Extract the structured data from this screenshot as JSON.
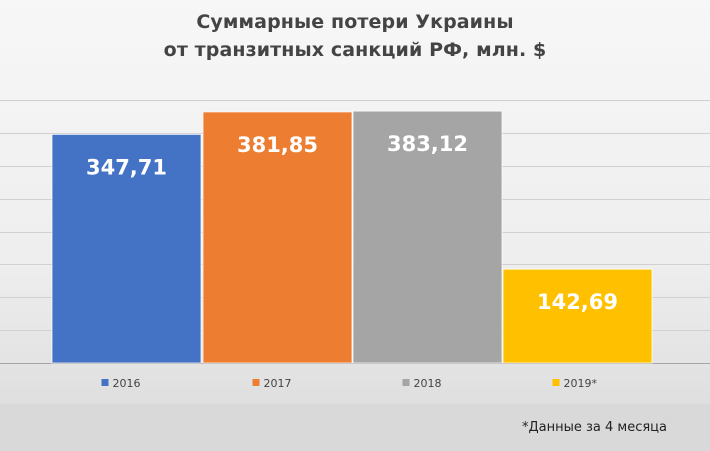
{
  "chart_title": {
    "line1": "Суммарные потери Украины",
    "line2": "от транзитных санкций РФ, млн. $"
  },
  "footnote": "*Данные за 4 месяца",
  "chart_data": {
    "type": "bar",
    "title": "Суммарные потери Украины от транзитных санкций РФ, млн. $",
    "categories": [
      "2016",
      "2017",
      "2018",
      "2019*"
    ],
    "values": [
      347.71,
      381.85,
      383.12,
      142.69
    ],
    "data_labels": [
      "347,71",
      "381,85",
      "383,12",
      "142,69"
    ],
    "colors": [
      "#4472c4",
      "#ed7d31",
      "#a5a5a5",
      "#ffc000"
    ],
    "ylim": [
      0,
      400
    ],
    "grid": true,
    "legend_position": "bottom",
    "xlabel": "",
    "ylabel": ""
  }
}
